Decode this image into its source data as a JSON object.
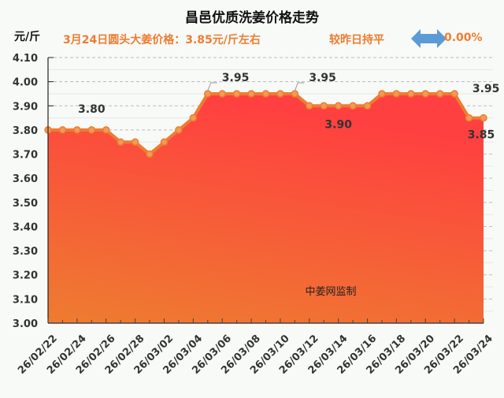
{
  "header": {
    "title": "昌邑优质洗姜价格走势",
    "unit": "元/斤",
    "subtitle": "3月24日圆头大姜价格：3.85元/斤左右",
    "compare": "较昨日持平",
    "change_icon": "double-arrow-icon",
    "change_pct": "0.00%",
    "accent_color": "#ed7d31",
    "arrow_color": "#5b9bd5"
  },
  "watermark": "中姜网监制",
  "chart_data": {
    "type": "area",
    "title": "昌邑优质洗姜价格走势",
    "ylabel": "元/斤",
    "xlabel": "",
    "ylim": [
      3.0,
      4.1
    ],
    "yticks": [
      "4.10",
      "4.00",
      "3.90",
      "3.80",
      "3.70",
      "3.60",
      "3.50",
      "3.40",
      "3.30",
      "3.20",
      "3.10",
      "3.00"
    ],
    "xtick_labels": [
      "26/02/22",
      "26/02/24",
      "26/02/26",
      "26/02/28",
      "26/03/02",
      "26/03/04",
      "26/03/06",
      "26/03/08",
      "26/03/10",
      "26/03/12",
      "26/03/14",
      "26/03/16",
      "26/03/18",
      "26/03/20",
      "26/03/22",
      "26/03/24"
    ],
    "x": [
      "26/02/22",
      "26/02/23",
      "26/02/24",
      "26/02/25",
      "26/02/26",
      "26/02/27",
      "26/02/28",
      "26/03/01",
      "26/03/02",
      "26/03/03",
      "26/03/04",
      "26/03/05",
      "26/03/06",
      "26/03/07",
      "26/03/08",
      "26/03/09",
      "26/03/10",
      "26/03/11",
      "26/03/12",
      "26/03/13",
      "26/03/14",
      "26/03/15",
      "26/03/16",
      "26/03/17",
      "26/03/18",
      "26/03/19",
      "26/03/20",
      "26/03/21",
      "26/03/22",
      "26/03/23",
      "26/03/24"
    ],
    "series": [
      {
        "name": "昌邑优质洗姜价格",
        "values": [
          3.8,
          3.8,
          3.8,
          3.8,
          3.8,
          3.75,
          3.75,
          3.7,
          3.75,
          3.8,
          3.85,
          3.95,
          3.95,
          3.95,
          3.95,
          3.95,
          3.95,
          3.95,
          3.9,
          3.9,
          3.9,
          3.9,
          3.9,
          3.95,
          3.95,
          3.95,
          3.95,
          3.95,
          3.95,
          3.85,
          3.85
        ]
      }
    ],
    "annotations": [
      {
        "index": 3,
        "text": "3.80"
      },
      {
        "index": 11,
        "text": "3.95"
      },
      {
        "index": 17,
        "text": "3.95"
      },
      {
        "index": 20,
        "text": "3.90"
      },
      {
        "index": 28,
        "text": "3.95"
      },
      {
        "index": 30,
        "text": "3.85"
      }
    ],
    "grid": true,
    "legend": "none",
    "fill_gradient": [
      "#ff4040",
      "#ee7c30"
    ],
    "line_color": "#ed7d31"
  }
}
